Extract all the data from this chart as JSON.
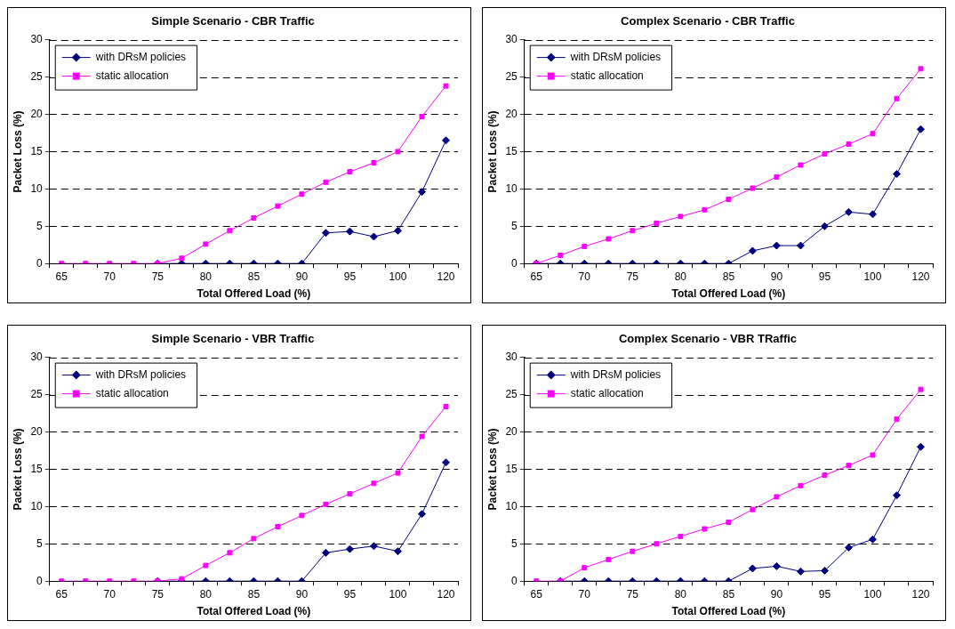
{
  "chart_data": [
    {
      "type": "line",
      "title": "Simple Scenario - CBR Traffic",
      "xlabel": "Total Offered Load (%)",
      "ylabel": "Packet Loss (%)",
      "categories": [
        "65",
        null,
        "70",
        null,
        "75",
        null,
        "80",
        null,
        "85",
        null,
        "90",
        null,
        "95",
        null,
        "100",
        null,
        "120"
      ],
      "ylim": [
        0,
        30
      ],
      "yticks": [
        0,
        5,
        10,
        15,
        20,
        25,
        30
      ],
      "grid": "y",
      "legend": "top left",
      "series": [
        {
          "name": "with DRsM policies",
          "color": "#000080",
          "marker": "diamond",
          "values": [
            null,
            null,
            null,
            null,
            0,
            0,
            0,
            0,
            0,
            0,
            0,
            4.1,
            4.3,
            3.6,
            4.4,
            9.6,
            16.5
          ]
        },
        {
          "name": "static allocation",
          "color": "#ff00ff",
          "marker": "square",
          "values": [
            0,
            0,
            0,
            0,
            0,
            0.7,
            2.6,
            4.4,
            6.1,
            7.7,
            9.3,
            10.9,
            12.3,
            13.5,
            15,
            19.7,
            23.8
          ]
        }
      ]
    },
    {
      "type": "line",
      "title": "Complex Scenario - CBR Traffic",
      "xlabel": "Total Offered Load (%)",
      "ylabel": "Packet Loss (%)",
      "categories": [
        "65",
        null,
        "70",
        null,
        "75",
        null,
        "80",
        null,
        "85",
        null,
        "90",
        null,
        "95",
        null,
        "100",
        null,
        "120"
      ],
      "ylim": [
        0,
        30
      ],
      "yticks": [
        0,
        5,
        10,
        15,
        20,
        25,
        30
      ],
      "grid": "y",
      "legend": "top left",
      "series": [
        {
          "name": "with DRsM policies",
          "color": "#000080",
          "marker": "diamond",
          "values": [
            0,
            0,
            0,
            0,
            0,
            0,
            0,
            0,
            0,
            1.7,
            2.4,
            2.4,
            5,
            6.9,
            6.6,
            12,
            18
          ]
        },
        {
          "name": "static allocation",
          "color": "#ff00ff",
          "marker": "square",
          "values": [
            0,
            1.1,
            2.3,
            3.3,
            4.4,
            5.4,
            6.3,
            7.2,
            8.6,
            10.1,
            11.6,
            13.2,
            14.7,
            16,
            17.4,
            22.1,
            26.1
          ]
        }
      ]
    },
    {
      "type": "line",
      "title": "Simple Scenario - VBR Traffic",
      "xlabel": "Total Offered Load (%)",
      "ylabel": "Packet Loss (%)",
      "categories": [
        "65",
        null,
        "70",
        null,
        "75",
        null,
        "80",
        null,
        "85",
        null,
        "90",
        null,
        "95",
        null,
        "100",
        null,
        "120"
      ],
      "ylim": [
        0,
        30
      ],
      "yticks": [
        0,
        5,
        10,
        15,
        20,
        25,
        30
      ],
      "grid": "y",
      "legend": "top left",
      "series": [
        {
          "name": "with DRsM policies",
          "color": "#000080",
          "marker": "diamond",
          "values": [
            null,
            null,
            null,
            null,
            0,
            0,
            0,
            0,
            0,
            0,
            0,
            3.8,
            4.3,
            4.7,
            4,
            9,
            15.9
          ]
        },
        {
          "name": "static allocation",
          "color": "#ff00ff",
          "marker": "square",
          "values": [
            0,
            0,
            0,
            0,
            0,
            0.3,
            2.1,
            3.8,
            5.7,
            7.3,
            8.8,
            10.3,
            11.7,
            13.1,
            14.5,
            19.4,
            23.4
          ]
        }
      ]
    },
    {
      "type": "line",
      "title": "Complex Scenario - VBR TRaffic",
      "xlabel": "Total Offered Load (%)",
      "ylabel": "Packet Loss (%)",
      "categories": [
        "65",
        null,
        "70",
        null,
        "75",
        null,
        "80",
        null,
        "85",
        null,
        "90",
        null,
        "95",
        null,
        "100",
        null,
        "120"
      ],
      "ylim": [
        0,
        30
      ],
      "yticks": [
        0,
        5,
        10,
        15,
        20,
        25,
        30
      ],
      "grid": "y",
      "legend": "top left",
      "series": [
        {
          "name": "with DRsM policies",
          "color": "#000080",
          "marker": "diamond",
          "values": [
            null,
            0,
            0,
            0,
            0,
            0,
            0,
            0,
            0,
            1.7,
            2,
            1.3,
            1.4,
            4.5,
            5.6,
            11.5,
            18
          ]
        },
        {
          "name": "static allocation",
          "color": "#ff00ff",
          "marker": "square",
          "values": [
            0,
            0,
            1.8,
            2.9,
            4,
            5,
            6,
            7,
            7.9,
            9.6,
            11.3,
            12.8,
            14.2,
            15.5,
            16.9,
            21.7,
            25.7
          ]
        }
      ]
    }
  ]
}
